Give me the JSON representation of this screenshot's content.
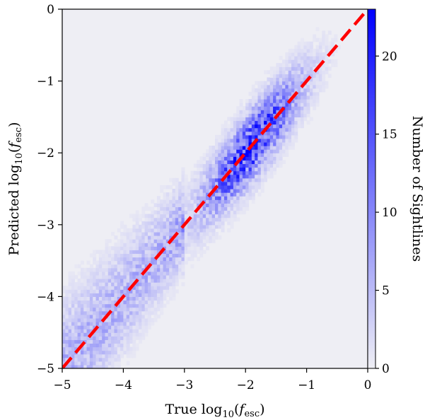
{
  "chart_data": {
    "type": "heatmap",
    "title": "",
    "xlabel": {
      "pre": "True log",
      "sub": "10",
      "paren_open": "(",
      "var": "f",
      "var_sub": "esc",
      "paren_close": ")"
    },
    "ylabel": {
      "pre": "Predicted log",
      "sub": "10",
      "paren_open": "(",
      "var": "f",
      "var_sub": "esc",
      "paren_close": ")"
    },
    "xlim": [
      -5,
      0
    ],
    "ylim": [
      -5,
      0
    ],
    "x_ticks": [
      -5,
      -4,
      -3,
      -2,
      -1,
      0
    ],
    "x_tick_labels": [
      "−5",
      "−4",
      "−3",
      "−2",
      "−1",
      "0"
    ],
    "y_ticks": [
      -5,
      -4,
      -3,
      -2,
      -1,
      0
    ],
    "y_tick_labels": [
      "−5",
      "−4",
      "−3",
      "−2",
      "−1",
      "0"
    ],
    "background_color": "#eeeef4",
    "colorbar": {
      "label": "Number of Sightlines",
      "range": [
        0,
        23
      ],
      "ticks": [
        0,
        5,
        10,
        15,
        20
      ],
      "tick_labels": [
        "0",
        "5",
        "10",
        "15",
        "20"
      ],
      "color_low": "#eeeef4",
      "color_high": "#0000ff"
    },
    "density_model": {
      "bins": 100,
      "ridge": "y = x",
      "core": {
        "x_center": -1.9,
        "x_spread": 0.75,
        "peak_count": 20
      },
      "tail": {
        "x_range": [
          -5,
          -3
        ],
        "count": 6
      },
      "scatter_sigma": 0.3
    },
    "reference_line": {
      "x": [
        -5,
        0
      ],
      "y": [
        -5,
        0
      ],
      "color": "#ff0000",
      "style": "dashed"
    }
  }
}
